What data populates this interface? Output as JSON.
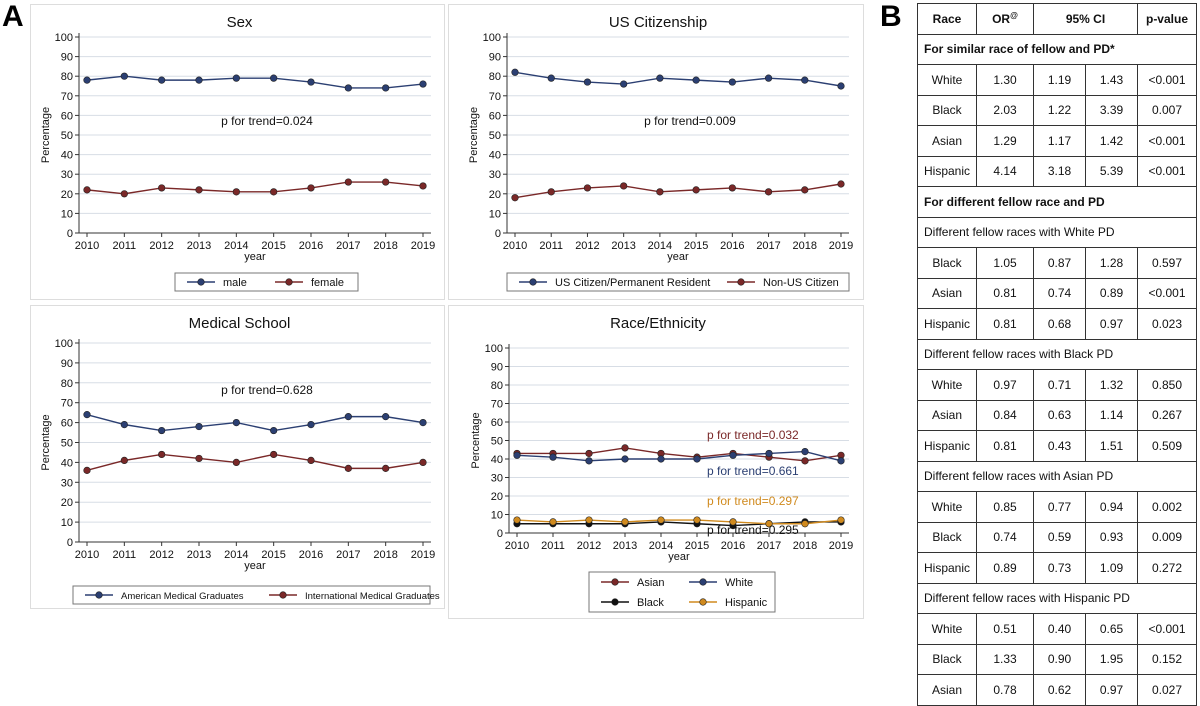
{
  "panel_labels": {
    "a": "A",
    "b": "B"
  },
  "colors": {
    "blue": "#2b3f72",
    "red": "#7a2828",
    "black": "#111111",
    "orange": "#d08a1e",
    "grid": "#d7dde5"
  },
  "chart_data": [
    {
      "id": "sex",
      "type": "line",
      "title": "Sex",
      "xlabel": "year",
      "ylabel": "Percentage",
      "x": [
        2010,
        2011,
        2012,
        2013,
        2014,
        2015,
        2016,
        2017,
        2018,
        2019
      ],
      "ylim": [
        0,
        100
      ],
      "yticks": [
        0,
        10,
        20,
        30,
        40,
        50,
        60,
        70,
        80,
        90,
        100
      ],
      "series": [
        {
          "name": "male",
          "color": "#2b3f72",
          "values": [
            78,
            80,
            78,
            78,
            79,
            79,
            77,
            74,
            74,
            76
          ]
        },
        {
          "name": "female",
          "color": "#7a2828",
          "values": [
            22,
            20,
            23,
            22,
            21,
            21,
            23,
            26,
            26,
            24
          ]
        }
      ],
      "annotations": [
        {
          "text": "p for trend=0.024",
          "color": "#111111"
        }
      ],
      "legend": "bottom"
    },
    {
      "id": "citizenship",
      "type": "line",
      "title": "US  Citizenship",
      "xlabel": "year",
      "ylabel": "Percentage",
      "x": [
        2010,
        2011,
        2012,
        2013,
        2014,
        2015,
        2016,
        2017,
        2018,
        2019
      ],
      "ylim": [
        0,
        100
      ],
      "yticks": [
        0,
        10,
        20,
        30,
        40,
        50,
        60,
        70,
        80,
        90,
        100
      ],
      "series": [
        {
          "name": "US Citizen/Permanent Resident",
          "color": "#2b3f72",
          "values": [
            82,
            79,
            77,
            76,
            79,
            78,
            77,
            79,
            78,
            75
          ]
        },
        {
          "name": "Non-US Citizen",
          "color": "#7a2828",
          "values": [
            18,
            21,
            23,
            24,
            21,
            22,
            23,
            21,
            22,
            25
          ]
        }
      ],
      "annotations": [
        {
          "text": "p for trend=0.009",
          "color": "#111111"
        }
      ],
      "legend": "bottom"
    },
    {
      "id": "medical-school",
      "type": "line",
      "title": "Medical School",
      "xlabel": "year",
      "ylabel": "Percentage",
      "x": [
        2010,
        2011,
        2012,
        2013,
        2014,
        2015,
        2016,
        2017,
        2018,
        2019
      ],
      "ylim": [
        0,
        100
      ],
      "yticks": [
        0,
        10,
        20,
        30,
        40,
        50,
        60,
        70,
        80,
        90,
        100
      ],
      "series": [
        {
          "name": "American Medical Graduates",
          "color": "#2b3f72",
          "values": [
            64,
            59,
            56,
            58,
            60,
            56,
            59,
            63,
            63,
            60
          ]
        },
        {
          "name": "International Medical Graduates",
          "color": "#7a2828",
          "values": [
            36,
            41,
            44,
            42,
            40,
            44,
            41,
            37,
            37,
            40
          ]
        }
      ],
      "annotations": [
        {
          "text": "p for trend=0.628",
          "color": "#111111"
        }
      ],
      "legend": "bottom"
    },
    {
      "id": "race-ethnicity",
      "type": "line",
      "title": "Race/Ethnicity",
      "xlabel": "year",
      "ylabel": "Percentage",
      "x": [
        2010,
        2011,
        2012,
        2013,
        2014,
        2015,
        2016,
        2017,
        2018,
        2019
      ],
      "ylim": [
        0,
        100
      ],
      "yticks": [
        0,
        10,
        20,
        30,
        40,
        50,
        60,
        70,
        80,
        90,
        100
      ],
      "series": [
        {
          "name": "Asian",
          "color": "#7a2828",
          "values": [
            43,
            43,
            43,
            46,
            43,
            41,
            43,
            41,
            39,
            42
          ]
        },
        {
          "name": "White",
          "color": "#2b3f72",
          "values": [
            42,
            41,
            39,
            40,
            40,
            40,
            42,
            43,
            44,
            39
          ]
        },
        {
          "name": "Black",
          "color": "#111111",
          "values": [
            5,
            5,
            5,
            5,
            6,
            5,
            4,
            5,
            6,
            6
          ]
        },
        {
          "name": "Hispanic",
          "color": "#d08a1e",
          "values": [
            7,
            6,
            7,
            6,
            7,
            7,
            6,
            5,
            5,
            7
          ]
        }
      ],
      "annotations": [
        {
          "text": "p for trend=0.032",
          "color": "#7a2828"
        },
        {
          "text": "p for trend=0.661",
          "color": "#2b3f72"
        },
        {
          "text": "p for trend=0.297",
          "color": "#d08a1e"
        },
        {
          "text": "p for trend=0.295",
          "color": "#111111"
        }
      ],
      "legend": "bottom"
    },
    {
      "id": "odds-ratio-table",
      "type": "table",
      "columns": [
        "Race",
        "OR@",
        "95% CI",
        "p-value"
      ],
      "sections": [
        {
          "title": "For similar race of fellow and PD*",
          "bold": true,
          "rows": [
            [
              "White",
              "1.30",
              "1.19",
              "1.43",
              "<0.001"
            ],
            [
              "Black",
              "2.03",
              "1.22",
              "3.39",
              "0.007"
            ],
            [
              "Asian",
              "1.29",
              "1.17",
              "1.42",
              "<0.001"
            ],
            [
              "Hispanic",
              "4.14",
              "3.18",
              "5.39",
              "<0.001"
            ]
          ]
        },
        {
          "title": "For different fellow race and PD",
          "bold": true,
          "rows": []
        },
        {
          "title": "Different fellow races with White PD",
          "bold": false,
          "rows": [
            [
              "Black",
              "1.05",
              "0.87",
              "1.28",
              "0.597"
            ],
            [
              "Asian",
              "0.81",
              "0.74",
              "0.89",
              "<0.001"
            ],
            [
              "Hispanic",
              "0.81",
              "0.68",
              "0.97",
              "0.023"
            ]
          ]
        },
        {
          "title": "Different fellow races with Black PD",
          "bold": false,
          "rows": [
            [
              "White",
              "0.97",
              "0.71",
              "1.32",
              "0.850"
            ],
            [
              "Asian",
              "0.84",
              "0.63",
              "1.14",
              "0.267"
            ],
            [
              "Hispanic",
              "0.81",
              "0.43",
              "1.51",
              "0.509"
            ]
          ]
        },
        {
          "title": "Different fellow races with Asian PD",
          "bold": false,
          "rows": [
            [
              "White",
              "0.85",
              "0.77",
              "0.94",
              "0.002"
            ],
            [
              "Black",
              "0.74",
              "0.59",
              "0.93",
              "0.009"
            ],
            [
              "Hispanic",
              "0.89",
              "0.73",
              "1.09",
              "0.272"
            ]
          ]
        },
        {
          "title": "Different fellow races with Hispanic PD",
          "bold": false,
          "rows": [
            [
              "White",
              "0.51",
              "0.40",
              "0.65",
              "<0.001"
            ],
            [
              "Black",
              "1.33",
              "0.90",
              "1.95",
              "0.152"
            ],
            [
              "Asian",
              "0.78",
              "0.62",
              "0.97",
              "0.027"
            ]
          ]
        }
      ]
    }
  ]
}
